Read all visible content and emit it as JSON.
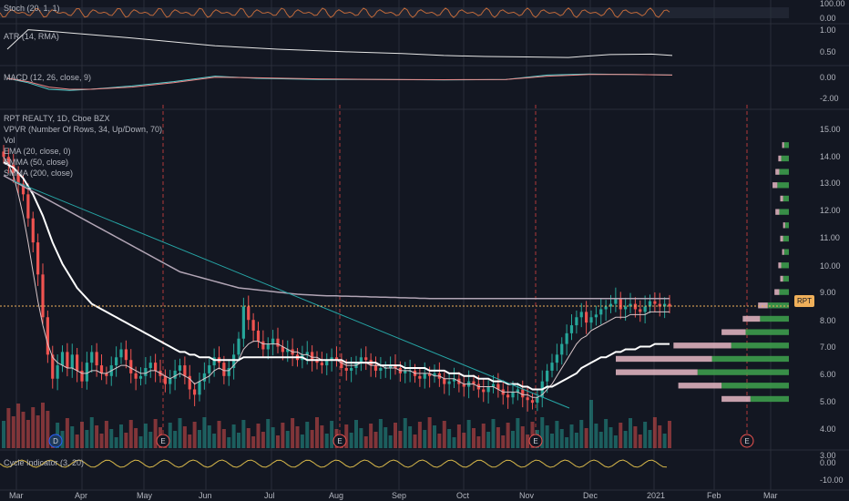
{
  "colors": {
    "background": "#131722",
    "grid": "#2a2e39",
    "up": "#26a69a",
    "down": "#ef5350",
    "ema20": "#d9c6c9",
    "smma50": "#ffffff",
    "smma200": "#b2a5b5",
    "trendline": "#26a6a6",
    "last_price": "#f0b05a",
    "vpvr_up": "#3fa34d",
    "vpvr_down": "#e7b9c4"
  },
  "legend": {
    "stoch": "Stoch (20, 1, 1)",
    "atr": "ATR (14, RMA)",
    "macd": "MACD (12, 26, close, 9)",
    "symbol": "RPT REALTY, 1D, Cboe BZX",
    "vpvr": "VPVR (Number Of Rows, 34, Up/Down, 70)",
    "vol": "Vol",
    "ema": "EMA (20, close, 0)",
    "smma50": "SMMA (50, close)",
    "smma200": "SMMA (200, close)",
    "cycle": "Cycle Indicator (3, 20)"
  },
  "price_tag": "RPT",
  "earnings_marker": "E",
  "dividend_marker": "D",
  "chart_data": [
    {
      "type": "line",
      "panel": "stoch",
      "ylim": [
        0,
        100
      ],
      "yticks": [
        "100.00",
        "0.00"
      ],
      "band": [
        20,
        80
      ]
    },
    {
      "type": "line",
      "panel": "atr",
      "ylim": [
        0.25,
        1.0
      ],
      "yticks": [
        "1.00",
        "0.50"
      ],
      "series": [
        {
          "x": [
            0,
            10,
            20,
            40,
            60,
            80,
            100,
            130,
            160,
            190,
            210,
            230,
            250,
            270,
            290,
            310,
            320
          ],
          "values": [
            0.55,
            0.95,
            0.92,
            0.85,
            0.78,
            0.7,
            0.62,
            0.55,
            0.5,
            0.46,
            0.42,
            0.4,
            0.39,
            0.38,
            0.44,
            0.45,
            0.42
          ]
        }
      ]
    },
    {
      "type": "line",
      "panel": "macd",
      "ylim": [
        -2.0,
        1.0
      ],
      "yticks": [
        "0.00",
        "-2.00"
      ],
      "series": [
        {
          "x": [
            0,
            10,
            20,
            30,
            40,
            60,
            80,
            100,
            120,
            150,
            180,
            210,
            240,
            260,
            280,
            300,
            320
          ],
          "values": [
            0.0,
            -0.4,
            -1.0,
            -1.1,
            -1.0,
            -0.7,
            -0.3,
            0.2,
            0.0,
            -0.1,
            -0.1,
            -0.15,
            -0.1,
            0.3,
            0.4,
            0.35,
            0.3
          ]
        },
        {
          "x": [
            0,
            10,
            20,
            30,
            40,
            60,
            80,
            100,
            120,
            150,
            180,
            210,
            240,
            260,
            280,
            300,
            320
          ],
          "values": [
            0.0,
            -0.3,
            -0.8,
            -1.0,
            -1.0,
            -0.8,
            -0.4,
            0.1,
            0.05,
            -0.05,
            -0.1,
            -0.12,
            -0.1,
            0.2,
            0.35,
            0.35,
            0.3
          ]
        }
      ]
    },
    {
      "type": "candlestick",
      "panel": "price",
      "ylim": [
        3.3,
        15.3
      ],
      "yticks": [
        "15.00",
        "14.00",
        "13.00",
        "12.00",
        "11.00",
        "10.00",
        "9.00",
        "8.00",
        "7.00",
        "6.00",
        "5.00",
        "4.00",
        "3.00"
      ],
      "xticks": [
        "Mar",
        "Apr",
        "May",
        "Jun",
        "Jul",
        "Aug",
        "Sep",
        "Oct",
        "Nov",
        "Dec",
        "2021",
        "Feb",
        "Mar"
      ],
      "last_price": 8.62,
      "closes": [
        14.2,
        13.9,
        13.6,
        13.2,
        12.8,
        11.9,
        11.0,
        9.8,
        8.2,
        6.8,
        5.9,
        6.4,
        6.9,
        6.3,
        6.8,
        6.2,
        5.8,
        6.5,
        6.9,
        6.4,
        6.1,
        6.0,
        6.4,
        6.7,
        7.0,
        6.6,
        6.1,
        5.9,
        6.0,
        6.3,
        6.5,
        6.2,
        6.0,
        5.7,
        5.9,
        6.2,
        6.4,
        6.0,
        5.5,
        5.3,
        5.8,
        6.1,
        6.4,
        6.7,
        6.5,
        6.0,
        6.3,
        6.8,
        7.4,
        8.6,
        8.1,
        7.7,
        7.3,
        7.0,
        7.2,
        7.4,
        7.1,
        6.9,
        7.0,
        6.8,
        6.6,
        6.8,
        6.9,
        6.6,
        6.5,
        6.4,
        6.6,
        6.7,
        6.6,
        6.3,
        6.2,
        6.3,
        6.5,
        6.7,
        6.6,
        6.4,
        6.2,
        6.3,
        6.3,
        6.4,
        6.3,
        6.1,
        6.2,
        6.2,
        6.0,
        5.9,
        6.1,
        6.0,
        6.1,
        5.9,
        5.7,
        5.8,
        5.9,
        5.7,
        5.6,
        5.8,
        5.7,
        5.5,
        5.4,
        5.6,
        5.7,
        5.5,
        5.3,
        5.2,
        5.4,
        5.5,
        5.2,
        5.1,
        5.0,
        5.2,
        5.8,
        6.2,
        6.5,
        6.8,
        7.2,
        7.6,
        7.9,
        8.2,
        8.4,
        8.0,
        8.2,
        8.3,
        8.5,
        8.6,
        8.7,
        8.9,
        8.5,
        8.6,
        8.7,
        8.5,
        8.4,
        8.6,
        8.8,
        8.7,
        8.6,
        8.7,
        8.6
      ],
      "ema20": [
        14.2,
        13.9,
        13.5,
        12.8,
        12.0,
        11.0,
        9.9,
        8.8,
        7.9,
        7.2,
        6.7,
        6.5,
        6.4,
        6.3,
        6.3,
        6.2,
        6.1,
        6.1,
        6.2,
        6.2,
        6.1,
        6.1,
        6.2,
        6.3,
        6.4,
        6.4,
        6.3,
        6.2,
        6.1,
        6.1,
        6.2,
        6.2,
        6.1,
        6.0,
        5.9,
        6.0,
        6.1,
        6.0,
        5.9,
        5.7,
        5.8,
        5.9,
        6.0,
        6.2,
        6.3,
        6.2,
        6.2,
        6.4,
        6.6,
        7.0,
        7.2,
        7.3,
        7.3,
        7.2,
        7.2,
        7.2,
        7.2,
        7.1,
        7.0,
        6.9,
        6.9,
        6.8,
        6.8,
        6.7,
        6.7,
        6.6,
        6.6,
        6.6,
        6.6,
        6.5,
        6.4,
        6.4,
        6.4,
        6.5,
        6.5,
        6.4,
        6.4,
        6.4,
        6.3,
        6.3,
        6.3,
        6.2,
        6.2,
        6.2,
        6.1,
        6.1,
        6.1,
        6.1,
        6.0,
        6.0,
        5.9,
        5.9,
        5.9,
        5.8,
        5.7,
        5.7,
        5.7,
        5.6,
        5.6,
        5.6,
        5.6,
        5.5,
        5.4,
        5.4,
        5.4,
        5.4,
        5.3,
        5.3,
        5.2,
        5.2,
        5.3,
        5.5,
        5.7,
        6.0,
        6.3,
        6.6,
        6.9,
        7.2,
        7.4,
        7.5,
        7.7,
        7.8,
        7.9,
        8.0,
        8.1,
        8.2,
        8.2,
        8.2,
        8.3,
        8.3,
        8.3,
        8.3,
        8.4,
        8.4,
        8.4,
        8.4,
        8.4
      ],
      "smma50": [
        14.0,
        13.9,
        13.8,
        13.6,
        13.4,
        13.1,
        12.8,
        12.4,
        12.0,
        11.5,
        11.0,
        10.6,
        10.2,
        9.9,
        9.6,
        9.3,
        9.1,
        8.9,
        8.7,
        8.6,
        8.5,
        8.4,
        8.3,
        8.2,
        8.1,
        8.0,
        7.9,
        7.8,
        7.7,
        7.6,
        7.5,
        7.4,
        7.3,
        7.2,
        7.1,
        7.0,
        6.9,
        6.9,
        6.8,
        6.8,
        6.7,
        6.7,
        6.7,
        6.6,
        6.6,
        6.6,
        6.6,
        6.6,
        6.6,
        6.7,
        6.7,
        6.7,
        6.7,
        6.7,
        6.7,
        6.7,
        6.7,
        6.7,
        6.7,
        6.7,
        6.7,
        6.7,
        6.6,
        6.6,
        6.6,
        6.6,
        6.6,
        6.6,
        6.6,
        6.6,
        6.5,
        6.5,
        6.5,
        6.5,
        6.5,
        6.5,
        6.5,
        6.4,
        6.4,
        6.4,
        6.4,
        6.4,
        6.3,
        6.3,
        6.3,
        6.3,
        6.3,
        6.2,
        6.2,
        6.2,
        6.2,
        6.1,
        6.1,
        6.1,
        6.0,
        6.0,
        6.0,
        5.9,
        5.9,
        5.9,
        5.8,
        5.8,
        5.8,
        5.7,
        5.7,
        5.7,
        5.6,
        5.6,
        5.5,
        5.5,
        5.5,
        5.6,
        5.6,
        5.7,
        5.8,
        5.9,
        6.0,
        6.1,
        6.3,
        6.4,
        6.5,
        6.6,
        6.7,
        6.7,
        6.8,
        6.9,
        6.9,
        7.0,
        7.0,
        7.0,
        7.1,
        7.1,
        7.1,
        7.2,
        7.2,
        7.2,
        7.2
      ],
      "smma200": [
        13.5,
        13.4,
        13.3,
        13.2,
        13.1,
        13.0,
        12.9,
        12.8,
        12.7,
        12.6,
        12.5,
        12.4,
        12.3,
        12.2,
        12.1,
        12.0,
        11.9,
        11.8,
        11.7,
        11.6,
        11.5,
        11.4,
        11.3,
        11.2,
        11.1,
        11.0,
        10.9,
        10.8,
        10.7,
        10.6,
        10.5,
        10.4,
        10.3,
        10.2,
        10.1,
        10.0,
        9.9,
        9.85,
        9.8,
        9.75,
        9.7,
        9.65,
        9.6,
        9.55,
        9.5,
        9.45,
        9.4,
        9.35,
        9.3,
        9.28,
        9.26,
        9.24,
        9.22,
        9.2,
        9.18,
        9.16,
        9.14,
        9.12,
        9.1,
        9.08,
        9.06,
        9.05,
        9.04,
        9.03,
        9.02,
        9.01,
        9.0,
        9.0,
        9.0,
        8.99,
        8.99,
        8.98,
        8.98,
        8.97,
        8.97,
        8.96,
        8.96,
        8.95,
        8.95,
        8.94,
        8.94,
        8.93,
        8.93,
        8.92,
        8.92,
        8.91,
        8.91,
        8.9,
        8.9,
        8.9,
        8.9,
        8.9,
        8.9,
        8.9,
        8.9,
        8.9,
        8.9,
        8.9,
        8.9,
        8.9,
        8.9,
        8.9,
        8.9,
        8.9,
        8.9,
        8.9,
        8.9,
        8.9,
        8.9,
        8.9,
        8.9,
        8.9,
        8.9,
        8.9,
        8.9,
        8.9,
        8.9,
        8.9,
        8.9,
        8.9,
        8.9,
        8.9,
        8.9,
        8.9,
        8.9,
        8.9,
        8.9,
        8.9,
        8.9,
        8.9,
        8.9,
        8.9,
        8.9,
        8.9,
        8.9,
        8.9,
        8.9
      ]
    },
    {
      "type": "bar",
      "panel": "vpvr",
      "price_levels": [
        14.5,
        14.0,
        13.5,
        13.0,
        12.5,
        12.0,
        11.5,
        11.0,
        10.5,
        10.0,
        9.5,
        9.0,
        8.5,
        8.0,
        7.5,
        7.0,
        6.5,
        6.0,
        5.5,
        5.0
      ],
      "up_values": [
        5,
        8,
        10,
        12,
        6,
        10,
        4,
        6,
        5,
        8,
        6,
        10,
        22,
        30,
        45,
        60,
        80,
        95,
        70,
        40
      ],
      "down_values": [
        2,
        3,
        4,
        5,
        3,
        4,
        2,
        3,
        2,
        3,
        3,
        5,
        10,
        18,
        25,
        60,
        100,
        85,
        45,
        30
      ]
    },
    {
      "type": "line",
      "panel": "cycle",
      "ylim": [
        -10,
        10
      ],
      "yticks": [
        "0.00",
        "-10.00"
      ]
    }
  ]
}
